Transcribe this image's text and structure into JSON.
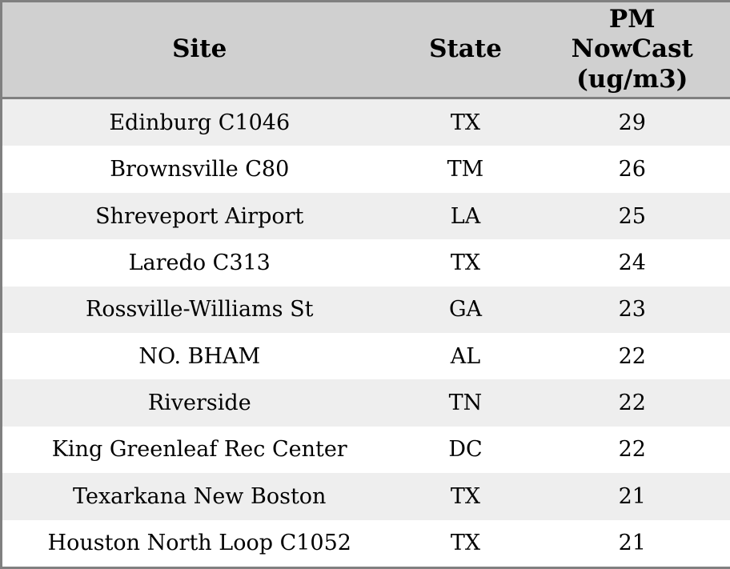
{
  "chart_data": {
    "type": "table",
    "columns": [
      "Site",
      "State",
      "PM NowCast (ug/m3)"
    ],
    "rows": [
      [
        "Edinburg C1046",
        "TX",
        29
      ],
      [
        "Brownsville C80",
        "TM",
        26
      ],
      [
        "Shreveport Airport",
        "LA",
        25
      ],
      [
        "Laredo C313",
        "TX",
        24
      ],
      [
        "Rossville-Williams St",
        "GA",
        23
      ],
      [
        "NO. BHAM",
        "AL",
        22
      ],
      [
        "Riverside",
        "TN",
        22
      ],
      [
        "King Greenleaf Rec Center",
        "DC",
        22
      ],
      [
        "Texarkana New Boston",
        "TX",
        21
      ],
      [
        "Houston North Loop C1052",
        "TX",
        21
      ]
    ]
  },
  "header": {
    "site_label": "Site",
    "state_label": "State",
    "pm_label": "PM\nNowCast\n(ug/m3)"
  },
  "colors": {
    "header_bg": "#d0d0d0",
    "stripe_row_bg": "#eeeeee",
    "plain_row_bg": "#ffffff",
    "border": "#808080",
    "text": "#000000"
  }
}
